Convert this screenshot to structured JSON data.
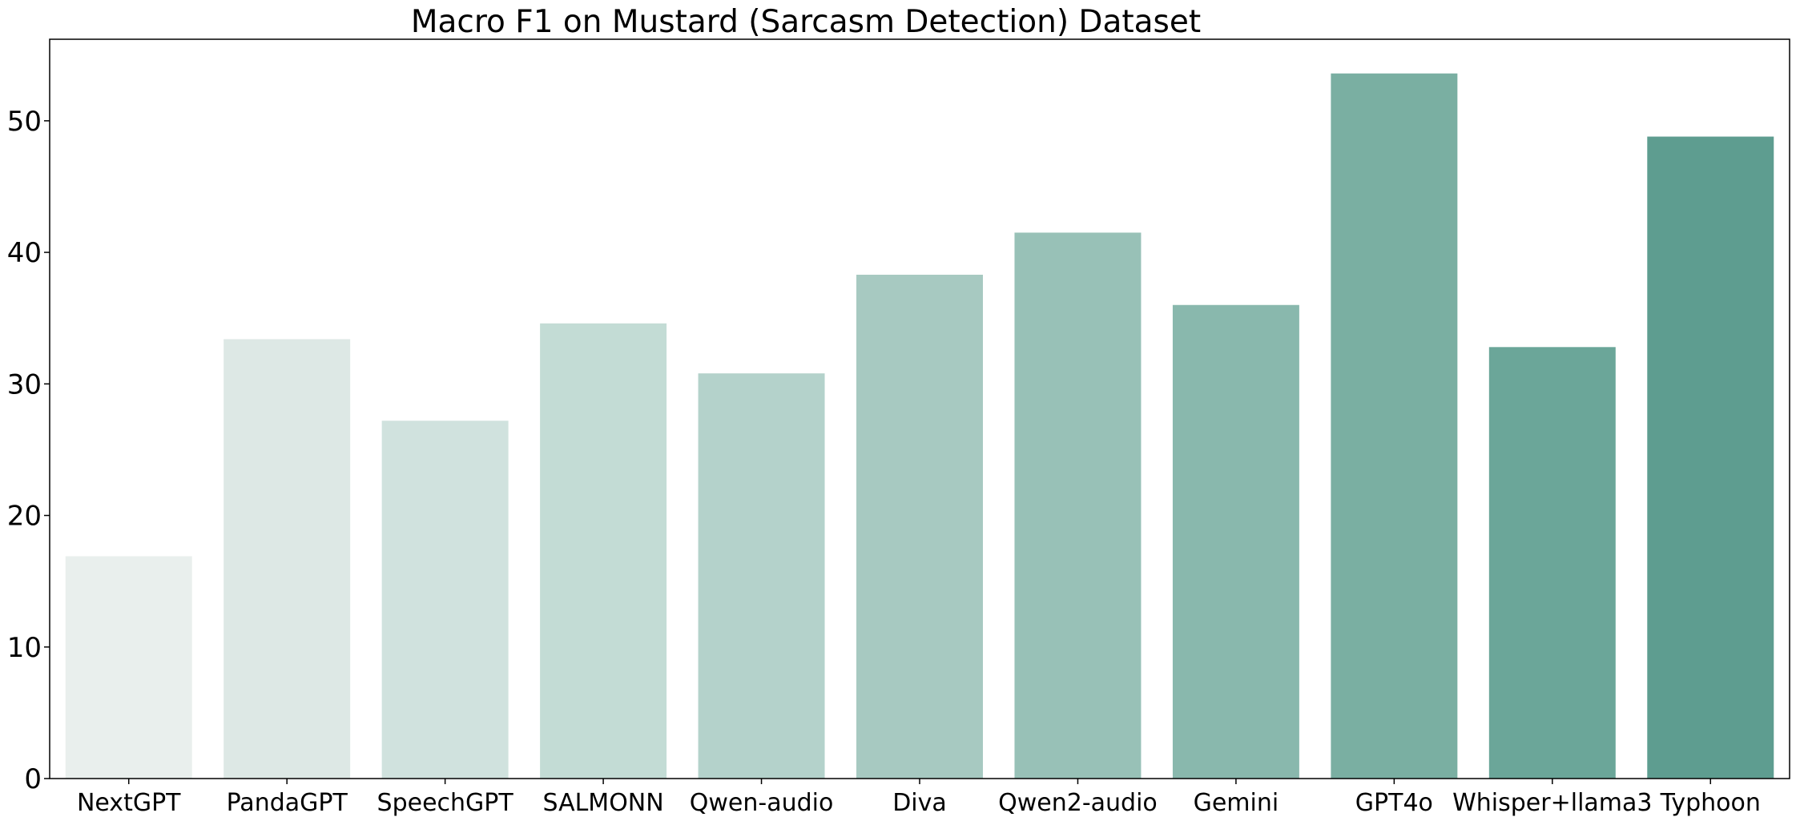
{
  "chart_data": {
    "type": "bar",
    "title": "Macro F1 on Mustard (Sarcasm Detection) Dataset",
    "xlabel": "",
    "ylabel": "",
    "categories": [
      "NextGPT",
      "PandaGPT",
      "SpeechGPT",
      "SALMONN",
      "Qwen-audio",
      "Diva",
      "Qwen2-audio",
      "Gemini",
      "GPT4o",
      "Whisper+llama3",
      "Typhoon"
    ],
    "values": [
      16.9,
      33.4,
      27.2,
      34.6,
      30.8,
      38.3,
      41.5,
      36.0,
      53.6,
      32.8,
      48.8
    ],
    "colors": [
      "#e9efed",
      "#dde8e5",
      "#d0e2de",
      "#c3dcd5",
      "#b4d2cb",
      "#a7c9c1",
      "#98c1b7",
      "#89b8ad",
      "#7aafa2",
      "#6ba699",
      "#5e9d90"
    ],
    "ylim": [
      0,
      56.2
    ],
    "yticks": [
      0,
      10,
      20,
      30,
      40,
      50
    ],
    "grid": false,
    "legend": "none"
  }
}
